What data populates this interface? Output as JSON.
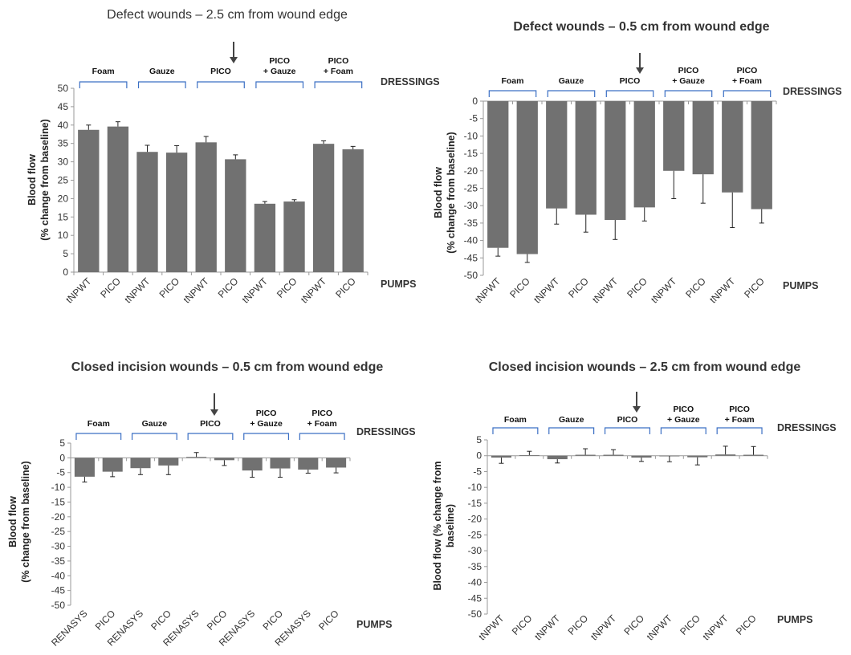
{
  "chart_data": [
    {
      "type": "bar",
      "title": "Defect wounds – 2.5 cm from wound edge",
      "title_weight": "normal",
      "ylabel": [
        "Blood flow",
        "(% change from baseline)"
      ],
      "ylim": [
        0,
        50
      ],
      "yticks": [
        0,
        5,
        10,
        15,
        20,
        25,
        30,
        35,
        40,
        45,
        50
      ],
      "categories": [
        "tNPWT",
        "PICO",
        "tNPWT",
        "PICO",
        "tNPWT",
        "PICO",
        "tNPWT",
        "PICO",
        "tNPWT",
        "PICO"
      ],
      "values": [
        38.7,
        39.6,
        32.7,
        32.5,
        35.3,
        30.7,
        18.6,
        19.2,
        34.9,
        33.4
      ],
      "errors": [
        1.3,
        1.3,
        1.8,
        1.9,
        1.6,
        1.2,
        0.6,
        0.5,
        0.8,
        0.8
      ],
      "dressings": [
        [
          "Foam"
        ],
        [
          "Gauze"
        ],
        [
          "PICO"
        ],
        [
          "PICO",
          "+ Gauze"
        ],
        [
          "PICO",
          "+ Foam"
        ]
      ],
      "dressings_label": "DRESSINGS",
      "pumps_label": "PUMPS",
      "arrow_group": 2
    },
    {
      "type": "bar",
      "title": "Defect wounds – 0.5 cm from wound edge",
      "title_weight": "bold",
      "ylabel": [
        "Blood flow",
        "(% change from baseline)"
      ],
      "ylim": [
        -50,
        0
      ],
      "yticks": [
        0,
        -5,
        -10,
        -15,
        -20,
        -25,
        -30,
        -35,
        -40,
        -45,
        -50
      ],
      "categories": [
        "tNPWT",
        "PICO",
        "tNPWT",
        "PICO",
        "tNPWT",
        "PICO",
        "tNPWT",
        "PICO",
        "tNPWT",
        "PICO"
      ],
      "values": [
        -42.1,
        -43.9,
        -30.8,
        -32.6,
        -34.1,
        -30.5,
        -20.0,
        -21.0,
        -26.2,
        -31.0
      ],
      "errors": [
        2.4,
        2.4,
        4.5,
        5.0,
        5.6,
        3.9,
        8.0,
        8.3,
        10.1,
        4.0
      ],
      "dressings": [
        [
          "Foam"
        ],
        [
          "Gauze"
        ],
        [
          "PICO"
        ],
        [
          "PICO",
          "+ Gauze"
        ],
        [
          "PICO",
          "+ Foam"
        ]
      ],
      "dressings_label": "DRESSINGS",
      "pumps_label": "PUMPS",
      "arrow_group": 2
    },
    {
      "type": "bar",
      "title": "Closed incision wounds – 0.5 cm from wound edge",
      "title_weight": "bold",
      "ylabel": [
        "Blood flow",
        "(% change from baseline)"
      ],
      "ylim": [
        -50,
        5
      ],
      "yticks": [
        5,
        0,
        -5,
        -10,
        -15,
        -20,
        -25,
        -30,
        -35,
        -40,
        -45,
        -50
      ],
      "categories": [
        "RENASYS",
        "PICO",
        "RENASYS",
        "PICO",
        "RENASYS",
        "PICO",
        "RENASYS",
        "PICO",
        "RENASYS",
        "PICO"
      ],
      "values": [
        -6.4,
        -4.7,
        -3.5,
        -2.6,
        0.3,
        -0.8,
        -4.3,
        -3.6,
        -4.0,
        -3.3
      ],
      "errors": [
        1.8,
        1.7,
        2.2,
        3.1,
        1.5,
        1.8,
        2.3,
        3.0,
        1.2,
        1.8
      ],
      "dressings": [
        [
          "Foam"
        ],
        [
          "Gauze"
        ],
        [
          "PICO"
        ],
        [
          "PICO",
          "+ Gauze"
        ],
        [
          "PICO",
          "+ Foam"
        ]
      ],
      "dressings_label": "DRESSINGS",
      "pumps_label": "PUMPS",
      "arrow_group": 2
    },
    {
      "type": "bar",
      "title": "Closed incision wounds – 2.5 cm from wound edge",
      "title_weight": "bold",
      "ylabel": [
        "Blood flow (% change from",
        "baseline)"
      ],
      "ylim": [
        -50,
        5
      ],
      "yticks": [
        5,
        0,
        -5,
        -10,
        -15,
        -20,
        -25,
        -30,
        -35,
        -40,
        -45,
        -50
      ],
      "categories": [
        "tNPWT",
        "PICO",
        "tNPWT",
        "PICO",
        "tNPWT",
        "PICO",
        "tNPWT",
        "PICO",
        "tNPWT",
        "PICO"
      ],
      "values": [
        -0.6,
        0.2,
        -1.1,
        0.3,
        0.3,
        -0.6,
        -0.1,
        -0.5,
        0.4,
        0.3
      ],
      "errors": [
        1.8,
        1.2,
        1.2,
        1.9,
        1.6,
        1.2,
        1.8,
        2.4,
        2.6,
        2.6
      ],
      "dressings": [
        [
          "Foam"
        ],
        [
          "Gauze"
        ],
        [
          "PICO"
        ],
        [
          "PICO",
          "+ Gauze"
        ],
        [
          "PICO",
          "+ Foam"
        ]
      ],
      "dressings_label": "DRESSINGS",
      "pumps_label": "PUMPS",
      "arrow_group": 2
    }
  ]
}
